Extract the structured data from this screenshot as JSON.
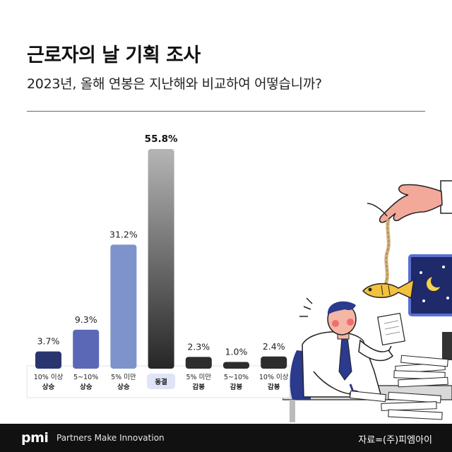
{
  "header": {
    "title": "근로자의 날 기획 조사",
    "subtitle": "2023년, 올해 연봉은 지난해와 비교하여 어떻습니까?"
  },
  "chart_data": {
    "type": "bar",
    "title": "",
    "xlabel": "",
    "ylabel": "",
    "ylim": [
      0,
      55.8
    ],
    "grid": false,
    "categories": [
      [
        "10% 이상",
        "상승"
      ],
      [
        "5~10%",
        "상승"
      ],
      [
        "5% 미만",
        "상승"
      ],
      [
        "동결"
      ],
      [
        "5% 미만",
        "감봉"
      ],
      [
        "5~10%",
        "감봉"
      ],
      [
        "10% 이상",
        "감봉"
      ]
    ],
    "values": [
      3.7,
      9.3,
      31.2,
      55.8,
      2.3,
      1.0,
      2.4
    ],
    "value_labels": [
      "3.7%",
      "9.3%",
      "31.2%",
      "55.8%",
      "2.3%",
      "1.0%",
      "2.4%"
    ],
    "colors": [
      "#2a3570",
      "#5a68b6",
      "#7e93cc",
      "gradient-gray",
      "#2d2d2d",
      "#2d2d2d",
      "#2d2d2d"
    ],
    "highlight_index": 3
  },
  "footer": {
    "brand": "pmi",
    "tagline": "Partners Make Innovation",
    "source": "자료=(주)피엠아이"
  }
}
